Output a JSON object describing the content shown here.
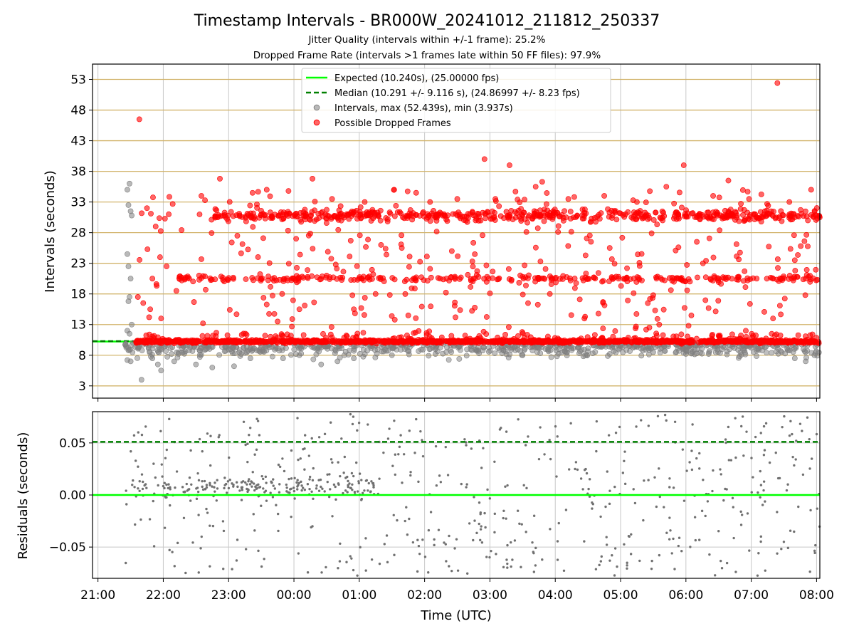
{
  "chart_data": [
    {
      "type": "scatter",
      "title": "Timestamp Intervals - BR000W_20241012_211812_250337",
      "subtitles": [
        "Jitter Quality (intervals within +/-1 frame): 25.2%",
        "Dropped Frame Rate (intervals >1 frames late within 50 FF files): 97.9%"
      ],
      "ylabel": "Intervals (seconds)",
      "ylim": [
        1.0,
        55.5
      ],
      "yticks": [
        "53",
        "48",
        "43",
        "38",
        "33",
        "28",
        "23",
        "18",
        "13",
        "8",
        "3"
      ],
      "x_axis": "time (UTC), shared with lower panel",
      "xlim": [
        "20:55",
        "08:03"
      ],
      "grid": "horizontal lines (goldenrod) and vertical lines (light gray)",
      "legend": {
        "placement": "top-center",
        "entries": [
          "Expected (10.240s), (25.00000 fps)",
          "Median (10.291 +/- 9.116 s), (24.86997 +/- 8.23 fps)",
          "Intervals, max (52.439s), min (3.937s)",
          "Possible Dropped Frames"
        ]
      },
      "expected_line": 10.24,
      "median_line": 10.291,
      "series_style": [
        {
          "legend": "Intervals",
          "color": "#808080"
        },
        {
          "legend": "Possible Dropped Frames",
          "color": "#ff0000"
        }
      ],
      "series": [
        {
          "name": "Intervals, max (52.439s), min (3.937s)",
          "color": "#808080",
          "points": [
            [
              "21:27",
              35.0
            ],
            [
              "21:29",
              36.0
            ],
            [
              "21:28",
              32.5
            ],
            [
              "21:30",
              31.5
            ],
            [
              "21:31",
              30.8
            ],
            [
              "21:27",
              24.5
            ],
            [
              "21:28",
              22.5
            ],
            [
              "21:30",
              20.5
            ],
            [
              "21:29",
              17.5
            ],
            [
              "21:28",
              16.8
            ],
            [
              "21:31",
              13.0
            ],
            [
              "21:27",
              12.0
            ],
            [
              "21:29",
              11.5
            ],
            [
              "21:26",
              9.5
            ],
            [
              "21:28",
              8.8
            ],
            [
              "21:27",
              7.2
            ],
            [
              "21:30",
              7.0
            ],
            [
              "21:40",
              4.0
            ],
            [
              "21:50",
              7.5
            ],
            [
              "21:55",
              6.5
            ],
            [
              "21:58",
              5.5
            ],
            [
              "22:10",
              7.0
            ],
            [
              "22:30",
              6.5
            ],
            [
              "22:45",
              6.0
            ],
            [
              "23:05",
              6.2
            ],
            [
              "23:20",
              7.5
            ],
            [
              "23:50",
              7.5
            ],
            [
              "00:05",
              8.0
            ],
            [
              "00:25",
              6.5
            ],
            [
              "00:40",
              7.0
            ],
            [
              "00:55",
              7.5
            ],
            [
              "01:30",
              8.0
            ],
            [
              "02:10",
              8.2
            ],
            [
              "02:50",
              8.3
            ],
            [
              "03:30",
              8.0
            ],
            [
              "04:10",
              8.5
            ],
            [
              "04:50",
              8.2
            ],
            [
              "05:30",
              8.5
            ],
            [
              "06:10",
              8.3
            ],
            [
              "06:50",
              8.5
            ],
            [
              "07:40",
              7.5
            ],
            [
              "07:50",
              7.0
            ],
            [
              "07:58",
              8.0
            ]
          ]
        },
        {
          "name": "Possible Dropped Frames",
          "color": "#ff0000",
          "points": [
            [
              "21:38",
              46.5
            ],
            [
              "07:24",
              52.4
            ],
            [
              "02:55",
              40.0
            ],
            [
              "03:18",
              39.0
            ],
            [
              "05:58",
              39.0
            ],
            [
              "00:17",
              36.8
            ],
            [
              "22:52",
              36.8
            ],
            [
              "03:48",
              36.3
            ],
            [
              "06:39",
              36.5
            ],
            [
              "21:45",
              32.0
            ],
            [
              "21:53",
              29.0
            ],
            [
              "22:05",
              31.0
            ],
            [
              "21:50",
              20.5
            ],
            [
              "21:57",
              24.0
            ],
            [
              "22:03",
              22.5
            ],
            [
              "22:12",
              18.5
            ],
            [
              "21:48",
              15.5
            ],
            [
              "21:58",
              14.0
            ],
            [
              "22:35",
              34.0
            ],
            [
              "23:22",
              34.5
            ],
            [
              "23:35",
              35.0
            ],
            [
              "23:55",
              34.8
            ],
            [
              "00:35",
              33.5
            ],
            [
              "01:05",
              33.0
            ],
            [
              "01:32",
              35.0
            ],
            [
              "02:05",
              33.0
            ],
            [
              "02:30",
              33.5
            ],
            [
              "03:05",
              33.5
            ],
            [
              "03:42",
              35.5
            ],
            [
              "04:12",
              33.5
            ],
            [
              "04:45",
              34.0
            ],
            [
              "05:15",
              33.0
            ],
            [
              "05:42",
              35.5
            ],
            [
              "06:25",
              34.0
            ],
            [
              "06:58",
              33.5
            ],
            [
              "07:35",
              33.0
            ],
            [
              "07:55",
              35.0
            ],
            [
              "22:50",
              30.5
            ],
            [
              "23:10",
              30.8
            ],
            [
              "23:40",
              30.5
            ],
            [
              "00:10",
              30.6
            ],
            [
              "00:40",
              30.4
            ],
            [
              "01:10",
              30.8
            ],
            [
              "01:40",
              30.5
            ],
            [
              "02:10",
              30.6
            ],
            [
              "02:40",
              30.4
            ],
            [
              "03:10",
              30.7
            ],
            [
              "03:40",
              30.6
            ],
            [
              "04:10",
              30.5
            ],
            [
              "04:40",
              30.9
            ],
            [
              "05:10",
              30.5
            ],
            [
              "05:40",
              30.7
            ],
            [
              "06:10",
              30.5
            ],
            [
              "06:40",
              30.8
            ],
            [
              "07:10",
              30.6
            ],
            [
              "07:40",
              30.5
            ],
            [
              "08:00",
              30.8
            ],
            [
              "22:20",
              20.5
            ],
            [
              "23:00",
              20.6
            ],
            [
              "23:30",
              20.4
            ],
            [
              "00:00",
              20.5
            ],
            [
              "00:30",
              21.0
            ],
            [
              "01:00",
              20.5
            ],
            [
              "01:50",
              20.5
            ],
            [
              "02:20",
              20.5
            ],
            [
              "03:30",
              20.8
            ],
            [
              "04:30",
              20.5
            ],
            [
              "05:05",
              20.5
            ],
            [
              "05:45",
              20.6
            ],
            [
              "06:30",
              20.5
            ],
            [
              "07:05",
              20.5
            ],
            [
              "07:50",
              20.5
            ],
            [
              "23:08",
              27.5
            ],
            [
              "00:02",
              27.0
            ],
            [
              "01:20",
              26.0
            ],
            [
              "02:25",
              25.0
            ],
            [
              "04:50",
              25.5
            ],
            [
              "06:10",
              26.5
            ],
            [
              "07:40",
              23.5
            ],
            [
              "00:05",
              15.5
            ],
            [
              "00:55",
              15.5
            ],
            [
              "01:45",
              14.5
            ],
            [
              "03:35",
              16.5
            ],
            [
              "05:25",
              16.5
            ],
            [
              "06:05",
              14.5
            ],
            [
              "07:20",
              14.0
            ],
            [
              "23:45",
              13.5
            ],
            [
              "01:15",
              18.0
            ],
            [
              "03:55",
              18.0
            ],
            [
              "05:30",
              17.8
            ],
            [
              "06:55",
              12.0
            ]
          ]
        }
      ],
      "dense_band": {
        "start": "21:35",
        "end": "08:03",
        "center": 10.24
      }
    },
    {
      "type": "scatter",
      "ylabel": "Residuals (seconds)",
      "ylim": [
        -0.08,
        0.08
      ],
      "yticks": [
        "0.05",
        "0.00",
        "−0.05"
      ],
      "xlabel": "Time (UTC)",
      "xticks": [
        "21:00",
        "22:00",
        "23:00",
        "00:00",
        "01:00",
        "02:00",
        "03:00",
        "04:00",
        "05:00",
        "06:00",
        "07:00",
        "08:00"
      ],
      "xlim": [
        "20:55",
        "08:03"
      ],
      "zero_line": 0.0,
      "median_line": 0.051,
      "series": [
        {
          "color": "#707070",
          "range": [
            "21:25",
            "08:03"
          ],
          "y_range": [
            -0.08,
            0.08
          ]
        }
      ]
    }
  ]
}
